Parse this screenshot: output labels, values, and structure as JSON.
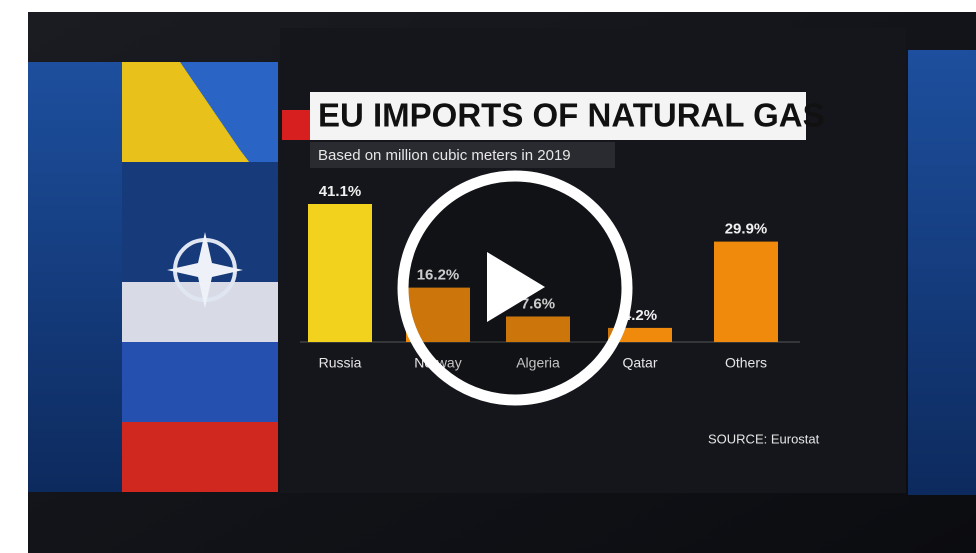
{
  "chart_data": {
    "type": "bar",
    "title": "EU IMPORTS OF NATURAL GAS",
    "subtitle": "Based on million cubic meters in 2019",
    "categories": [
      "Russia",
      "Norway",
      "Algeria",
      "Qatar",
      "Others"
    ],
    "values": [
      41.1,
      16.2,
      7.6,
      4.2,
      29.9
    ],
    "value_labels": [
      "41.1%",
      "16.2%",
      "7.6%",
      "4.2%",
      "29.9%"
    ],
    "colors": [
      "#f2d21c",
      "#f08a0c",
      "#f08a0c",
      "#f08a0c",
      "#f08a0c"
    ],
    "source": "SOURCE: Eurostat"
  }
}
